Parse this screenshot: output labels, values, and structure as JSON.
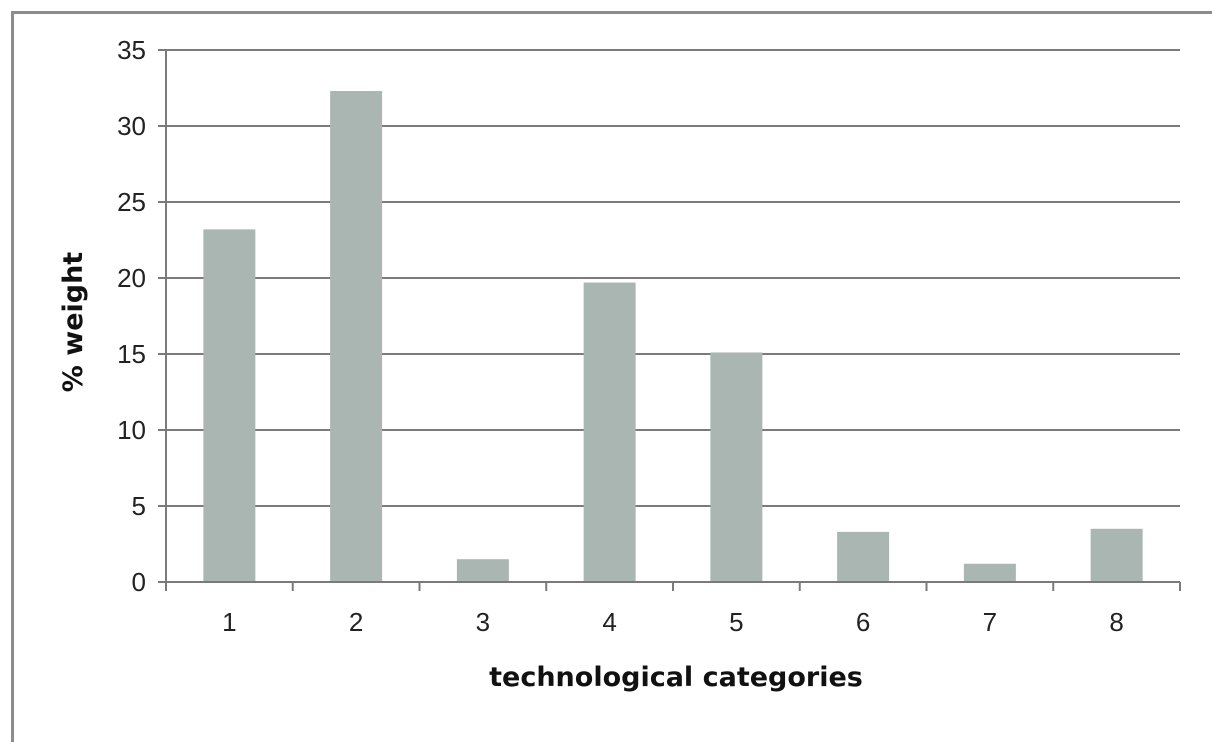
{
  "chart_data": {
    "type": "bar",
    "categories": [
      "1",
      "2",
      "3",
      "4",
      "5",
      "6",
      "7",
      "8"
    ],
    "values": [
      23.2,
      32.3,
      1.5,
      19.7,
      15.1,
      3.3,
      1.2,
      3.5
    ],
    "title": "",
    "xlabel": "technological categories",
    "ylabel": "% weight",
    "ylim": [
      0,
      35
    ],
    "yticks": [
      0,
      5,
      10,
      15,
      20,
      25,
      30,
      35
    ],
    "grid": true,
    "legend": "none",
    "colors": {
      "bar": "#a9b6b2",
      "grid": "#7a7a7a",
      "axis": "#7a7a7a",
      "frame": "#8c8c8c"
    }
  }
}
